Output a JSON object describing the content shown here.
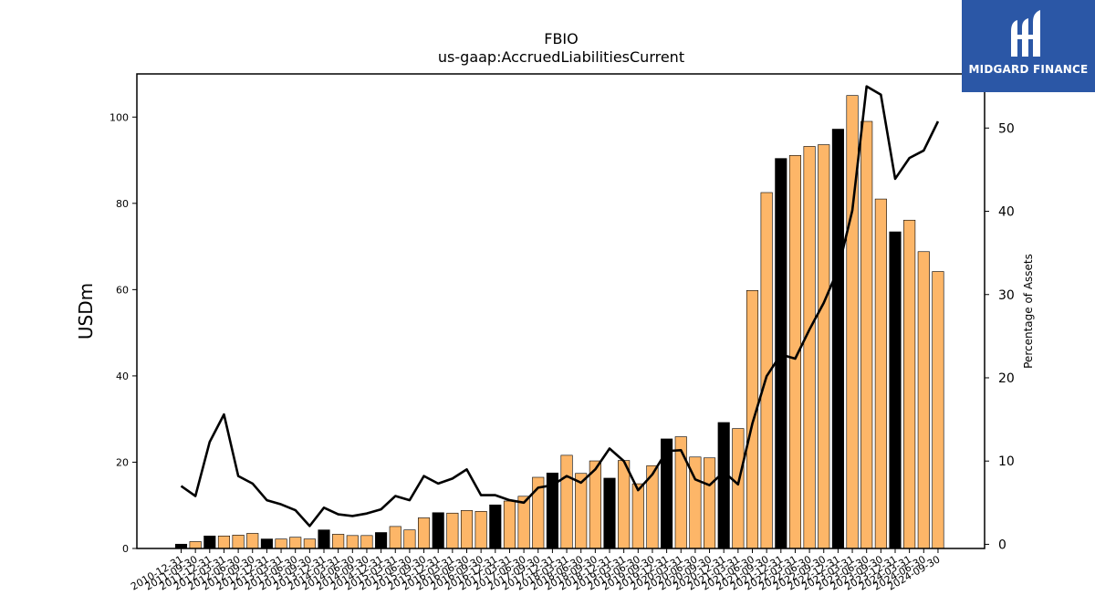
{
  "chart_data": {
    "type": "bar",
    "title": "FBIO",
    "subtitle": "us-gaap:AccruedLiabilitiesCurrent",
    "ylabel": "USDm",
    "y2label": "Percentage of Assets",
    "ylim": [
      0,
      110
    ],
    "y2lim": [
      -0.5,
      56.5
    ],
    "yticks": [
      0,
      20,
      40,
      60,
      80,
      100
    ],
    "y2ticks": [
      0,
      10,
      20,
      30,
      40,
      50
    ],
    "colors": {
      "annual_bar": "#000000",
      "quarterly_bar": "#fdb668",
      "line": "#000000"
    },
    "categories": [
      "2010-12-31",
      "2011-09-30",
      "2011-12-31",
      "2012-03-31",
      "2012-06-30",
      "2012-09-30",
      "2012-12-31",
      "2013-03-31",
      "2013-06-30",
      "2013-09-30",
      "2013-12-31",
      "2014-03-31",
      "2014-06-30",
      "2014-09-30",
      "2014-12-31",
      "2015-03-31",
      "2015-06-30",
      "2015-09-30",
      "2015-12-31",
      "2016-03-31",
      "2016-06-30",
      "2016-09-30",
      "2016-12-31",
      "2017-03-31",
      "2017-06-30",
      "2017-09-30",
      "2017-12-31",
      "2018-03-31",
      "2018-06-30",
      "2018-09-30",
      "2018-12-31",
      "2019-03-31",
      "2019-06-30",
      "2019-09-30",
      "2019-12-31",
      "2020-03-31",
      "2020-06-30",
      "2020-09-30",
      "2020-12-31",
      "2021-03-31",
      "2021-06-30",
      "2021-09-30",
      "2021-12-31",
      "2022-03-31",
      "2022-06-30",
      "2022-09-30",
      "2022-12-31",
      "2023-03-31",
      "2023-06-30",
      "2023-09-30",
      "2023-12-31",
      "2024-03-31",
      "2024-06-30",
      "2024-09-30"
    ],
    "series": [
      {
        "type": "bar",
        "values": [
          1.0,
          1.6,
          2.9,
          2.9,
          3.1,
          3.5,
          2.2,
          2.2,
          2.6,
          2.2,
          4.3,
          3.3,
          3.0,
          3.0,
          3.7,
          5.1,
          4.3,
          7.1,
          8.3,
          8.2,
          8.8,
          8.6,
          10.1,
          11.0,
          12.1,
          16.5,
          17.5,
          21.6,
          17.4,
          20.3,
          16.3,
          20.4,
          15.0,
          19.2,
          25.4,
          25.9,
          21.2,
          21.0,
          29.2,
          27.8,
          59.8,
          82.5,
          90.4,
          91.1,
          93.2,
          93.6,
          97.2,
          105.0,
          99.0,
          81.0,
          73.4,
          76.1,
          68.8,
          64.2
        ],
        "annual": [
          true,
          false,
          true,
          false,
          false,
          false,
          true,
          false,
          false,
          false,
          true,
          false,
          false,
          false,
          true,
          false,
          false,
          false,
          true,
          false,
          false,
          false,
          true,
          false,
          false,
          false,
          true,
          false,
          false,
          false,
          true,
          false,
          false,
          false,
          true,
          false,
          false,
          false,
          true,
          false,
          false,
          false,
          true,
          false,
          false,
          false,
          true,
          false,
          false,
          false,
          true,
          false,
          false,
          false
        ]
      },
      {
        "type": "line",
        "axis": "right",
        "values": [
          7.0,
          5.8,
          12.3,
          15.6,
          8.2,
          7.3,
          5.3,
          4.8,
          4.1,
          2.2,
          4.4,
          3.6,
          3.4,
          3.7,
          4.2,
          5.8,
          5.3,
          8.2,
          7.3,
          7.9,
          9.0,
          5.9,
          5.9,
          5.3,
          5.0,
          6.8,
          7.1,
          8.2,
          7.4,
          9.0,
          11.5,
          10.0,
          6.5,
          8.4,
          11.2,
          11.3,
          7.8,
          7.1,
          8.7,
          7.2,
          14.5,
          20.2,
          22.8,
          22.3,
          25.8,
          29.0,
          33.0,
          40.1,
          55.0,
          54.0,
          43.9,
          46.4,
          47.3,
          50.8
        ]
      }
    ]
  },
  "logo": {
    "text": "MIDGARD FINANCE"
  }
}
